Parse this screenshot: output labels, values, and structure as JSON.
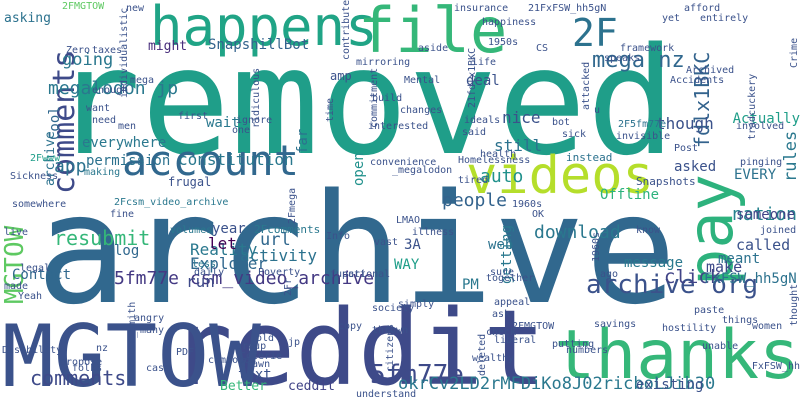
{
  "words": [
    {
      "text": "removed",
      "color": "#1f9e89"
    },
    {
      "text": "archive",
      "color": "#31688e"
    },
    {
      "text": "reddit",
      "color": "#3e4a89"
    },
    {
      "text": "MGTOW",
      "color": "#3b528b"
    },
    {
      "text": "thanks",
      "color": "#35b779"
    },
    {
      "text": "happens",
      "color": "#20a486"
    },
    {
      "text": "file",
      "color": "#35b779"
    },
    {
      "text": "videos",
      "color": "#b5de2b"
    },
    {
      "text": "pay",
      "color": "#2db27d"
    },
    {
      "text": "account",
      "color": "#31688e"
    },
    {
      "text": "comments",
      "color": "#3e4a89"
    },
    {
      "text": "5fm77e",
      "color": "#3e4a89"
    },
    {
      "text": "archive org",
      "color": "#3b528b"
    },
    {
      "text": "2F",
      "color": "#2c728e"
    },
    {
      "text": "comments",
      "color": "#3e4a89"
    },
    {
      "text": "MGTOW",
      "color": "#5ec962"
    },
    {
      "text": "mega nz",
      "color": "#31688e"
    },
    {
      "text": "resubmit",
      "color": "#35b779"
    },
    {
      "text": "going",
      "color": "#2a788e"
    },
    {
      "text": "megalodon jp",
      "color": "#2a788e"
    },
    {
      "text": "fdlx1BKC",
      "color": "#33638d"
    },
    {
      "text": "okrCv2LD2rMFDiKo8J02ricboLJib30",
      "color": "#2a788e"
    },
    {
      "text": "5fm77e csm_video_archive",
      "color": "#443983"
    },
    {
      "text": "download",
      "color": "#2a788e"
    },
    {
      "text": "people",
      "color": "#33638d"
    },
    {
      "text": "click",
      "color": "#414487"
    },
    {
      "text": "auto",
      "color": "#21918c"
    },
    {
      "text": "nation",
      "color": "#26828e"
    },
    {
      "text": "rules",
      "color": "#2a788e"
    },
    {
      "text": "though",
      "color": "#3b528b"
    },
    {
      "text": "nice",
      "color": "#3b528b"
    },
    {
      "text": "still",
      "color": "#2c728e"
    },
    {
      "text": "app",
      "color": "#2c728e"
    },
    {
      "text": "everywhere",
      "color": "#2a788e"
    },
    {
      "text": "permission",
      "color": "#2c728e"
    },
    {
      "text": "constitution",
      "color": "#2a788e"
    },
    {
      "text": "url",
      "color": "#31688e"
    },
    {
      "text": "activity",
      "color": "#2c728e"
    },
    {
      "text": "Explorer",
      "color": "#31688e"
    },
    {
      "text": "Reality",
      "color": "#2a788e"
    },
    {
      "text": "let",
      "color": "#440154"
    },
    {
      "text": "run",
      "color": "#3e4a89"
    },
    {
      "text": "make",
      "color": "#3e4a89"
    },
    {
      "text": "called",
      "color": "#3b528b"
    },
    {
      "text": "meant",
      "color": "#2c728e"
    },
    {
      "text": "FxFSW_hh5gN",
      "color": "#2c728e"
    },
    {
      "text": "asked",
      "color": "#3b528b"
    },
    {
      "text": "EVERY",
      "color": "#2c728e"
    },
    {
      "text": "Offline",
      "color": "#2db27d"
    },
    {
      "text": "someone",
      "color": "#414487"
    },
    {
      "text": "Actually",
      "color": "#1f9e89"
    },
    {
      "text": "Contact",
      "color": "#31688e"
    },
    {
      "text": "PM",
      "color": "#2a788e"
    },
    {
      "text": "web",
      "color": "#2c728e"
    },
    {
      "text": "WAY",
      "color": "#1f9e89"
    },
    {
      "text": "message",
      "color": "#2a788e"
    },
    {
      "text": "3A",
      "color": "#3b528b"
    },
    {
      "text": "text",
      "color": "#3b528b"
    },
    {
      "text": "ceddit",
      "color": "#414487"
    },
    {
      "text": "Better",
      "color": "#35b779"
    },
    {
      "text": "existing",
      "color": "#3b528b"
    },
    {
      "text": "SnapshillBot",
      "color": "#33638d"
    },
    {
      "text": "wait",
      "color": "#2a788e"
    },
    {
      "text": "far",
      "color": "#2c728e"
    },
    {
      "text": "open",
      "color": "#21918c"
    },
    {
      "text": "deal",
      "color": "#3b528b"
    },
    {
      "text": "log",
      "color": "#31688e"
    },
    {
      "text": "amp",
      "color": "#3b528b"
    },
    {
      "text": "might",
      "color": "#472d7b"
    },
    {
      "text": "Cool",
      "color": "#31688e"
    },
    {
      "text": "archive",
      "color": "#2c728e"
    },
    {
      "text": "asking",
      "color": "#2c728e"
    },
    {
      "text": "year",
      "color": "#3b528b"
    },
    {
      "text": "getting",
      "color": "#2a788e"
    },
    {
      "text": "Snapshots",
      "color": "#3b528b"
    },
    {
      "text": "2F5fm77e",
      "color": "#2c728e"
    },
    {
      "text": "invisible",
      "color": "#3b528b"
    },
    {
      "text": "instead",
      "color": "#2c728e"
    },
    {
      "text": "frugal",
      "color": "#3b528b"
    },
    {
      "text": "entirely",
      "color": "#3b528b"
    },
    {
      "text": "afford",
      "color": "#3b528b"
    },
    {
      "text": "Archived",
      "color": "#3b528b"
    },
    {
      "text": "Accidents",
      "color": "#3b528b"
    },
    {
      "text": "insurance",
      "color": "#3b528b"
    },
    {
      "text": "21FxFSW_hh5gN",
      "color": "#3b528b"
    },
    {
      "text": "yet",
      "color": "#3b528b"
    },
    {
      "text": "2FMGTOW",
      "color": "#5ec962"
    },
    {
      "text": "new",
      "color": "#3b528b"
    },
    {
      "text": "taxes",
      "color": "#3b528b"
    },
    {
      "text": "Zero",
      "color": "#3b528b"
    },
    {
      "text": "2Fwww",
      "color": "#1f9e89"
    },
    {
      "text": "Sickness",
      "color": "#3b528b"
    },
    {
      "text": "making",
      "color": "#2a788e"
    },
    {
      "text": "somewhere",
      "color": "#3b528b"
    },
    {
      "text": "fine",
      "color": "#3b528b"
    },
    {
      "text": "live",
      "color": "#3b528b"
    },
    {
      "text": "legal",
      "color": "#3b528b"
    },
    {
      "text": "made",
      "color": "#3b528b"
    },
    {
      "text": "Disability",
      "color": "#3b528b"
    },
    {
      "text": "folks",
      "color": "#3b528b"
    },
    {
      "text": "propose",
      "color": "#3b528b"
    },
    {
      "text": "clive_smith",
      "color": "#3b528b"
    },
    {
      "text": "compose",
      "color": "#3b528b"
    },
    {
      "text": "2Fcomments",
      "color": "#2a788e"
    },
    {
      "text": "2Fcsm_video_archive",
      "color": "#2a788e"
    },
    {
      "text": "volumes",
      "color": "#2a788e"
    },
    {
      "text": "less",
      "color": "#2a788e"
    },
    {
      "text": "daily",
      "color": "#3b528b"
    },
    {
      "text": "Poverty",
      "color": "#3b528b"
    },
    {
      "text": "group",
      "color": "#3b528b"
    },
    {
      "text": "Coterie",
      "color": "#3b528b"
    },
    {
      "text": "drawn",
      "color": "#3b528b"
    },
    {
      "text": "old",
      "color": "#3b528b"
    },
    {
      "text": "understand",
      "color": "#3b528b"
    },
    {
      "text": "citizens",
      "color": "#3b528b"
    },
    {
      "text": "thrown",
      "color": "#3b528b"
    },
    {
      "text": "society",
      "color": "#3b528b"
    },
    {
      "text": "deleted",
      "color": "#3b528b"
    },
    {
      "text": "wealthy",
      "color": "#3b528b"
    },
    {
      "text": "liberal",
      "color": "#3b528b"
    },
    {
      "text": "check",
      "color": "#3b528b"
    },
    {
      "text": "ask",
      "color": "#3b528b"
    },
    {
      "text": "putting",
      "color": "#3b528b"
    },
    {
      "text": "numbers",
      "color": "#3b528b"
    },
    {
      "text": "savings",
      "color": "#3b528b"
    },
    {
      "text": "hostility",
      "color": "#3b528b"
    },
    {
      "text": "FxFSW_hh",
      "color": "#3b528b"
    },
    {
      "text": "thought",
      "color": "#3b528b"
    },
    {
      "text": "things",
      "color": "#3b528b"
    },
    {
      "text": "unable",
      "color": "#3b528b"
    },
    {
      "text": "women",
      "color": "#3b528b"
    },
    {
      "text": "paste",
      "color": "#3b528b"
    },
    {
      "text": "ago",
      "color": "#3b528b"
    },
    {
      "text": "joined",
      "color": "#3b528b"
    },
    {
      "text": "know",
      "color": "#3b528b"
    },
    {
      "text": "pinging",
      "color": "#3b528b"
    },
    {
      "text": "Post",
      "color": "#3b528b"
    },
    {
      "text": "tradcuckery",
      "color": "#3b528b"
    },
    {
      "text": "involved",
      "color": "#3b528b"
    },
    {
      "text": "Crime",
      "color": "#3b528b"
    },
    {
      "text": "framework",
      "color": "#3b528b"
    },
    {
      "text": "speaks",
      "color": "#3b528b"
    },
    {
      "text": "attacked",
      "color": "#3b528b"
    },
    {
      "text": "bot",
      "color": "#3b528b"
    },
    {
      "text": "sick",
      "color": "#3b528b"
    },
    {
      "text": "health",
      "color": "#3b528b"
    },
    {
      "text": "said",
      "color": "#3b528b"
    },
    {
      "text": "ideals",
      "color": "#3b528b"
    },
    {
      "text": "Homelessness",
      "color": "#3b528b"
    },
    {
      "text": "_megalodon",
      "color": "#3b528b"
    },
    {
      "text": "convenience",
      "color": "#3b528b"
    },
    {
      "text": "tired",
      "color": "#3b528b"
    },
    {
      "text": "OK",
      "color": "#3b528b"
    },
    {
      "text": "1960s",
      "color": "#3b528b"
    },
    {
      "text": "appeal",
      "color": "#3b528b"
    },
    {
      "text": "sure",
      "color": "#3b528b"
    },
    {
      "text": "together",
      "color": "#3b528b"
    },
    {
      "text": "simply",
      "color": "#3b528b"
    },
    {
      "text": "copy",
      "color": "#3b528b"
    },
    {
      "text": "part",
      "color": "#3b528b"
    },
    {
      "text": "vast",
      "color": "#3b528b"
    },
    {
      "text": "Info",
      "color": "#3b528b"
    },
    {
      "text": "LMAO",
      "color": "#3b528b"
    },
    {
      "text": "illness",
      "color": "#3b528b"
    },
    {
      "text": "2Fr",
      "color": "#3b528b"
    },
    {
      "text": "jp",
      "color": "#3b528b"
    },
    {
      "text": "functional",
      "color": "#3b528b"
    },
    {
      "text": "2Fmega",
      "color": "#3b528b"
    },
    {
      "text": "ridiculous",
      "color": "#3b528b"
    },
    {
      "text": "one",
      "color": "#3b528b"
    },
    {
      "text": "ignore",
      "color": "#3b528b"
    },
    {
      "text": "first",
      "color": "#3b528b"
    },
    {
      "text": "enough",
      "color": "#3b528b"
    },
    {
      "text": "want",
      "color": "#3b528b"
    },
    {
      "text": "need",
      "color": "#3b528b"
    },
    {
      "text": "men",
      "color": "#3b528b"
    },
    {
      "text": "mega",
      "color": "#3b528b"
    },
    {
      "text": "individualistic",
      "color": "#3b528b"
    },
    {
      "text": "time",
      "color": "#3b528b"
    },
    {
      "text": "mirroring",
      "color": "#3b528b"
    },
    {
      "text": "contribute",
      "color": "#3b528b"
    },
    {
      "text": "aside",
      "color": "#3b528b"
    },
    {
      "text": "1950s",
      "color": "#3b528b"
    },
    {
      "text": "CS",
      "color": "#3b528b"
    },
    {
      "text": "happiness",
      "color": "#3b528b"
    },
    {
      "text": "life",
      "color": "#3b528b"
    },
    {
      "text": "Mental",
      "color": "#3b528b"
    },
    {
      "text": "build",
      "color": "#3b528b"
    },
    {
      "text": "changes",
      "color": "#3b528b"
    },
    {
      "text": "interested",
      "color": "#3b528b"
    },
    {
      "text": "commitment",
      "color": "#3b528b"
    },
    {
      "text": "21fdlx1BKC",
      "color": "#3b528b"
    },
    {
      "text": "u",
      "color": "#3b528b"
    },
    {
      "text": "nz",
      "color": "#3b528b"
    },
    {
      "text": "Yeah",
      "color": "#3b528b"
    },
    {
      "text": "1960s",
      "color": "#3b528b"
    },
    {
      "text": "PDF",
      "color": "#3b528b"
    },
    {
      "text": "case",
      "color": "#3b528b"
    },
    {
      "text": "angry",
      "color": "#3b528b"
    },
    {
      "text": "many",
      "color": "#3b528b"
    },
    {
      "text": "2FMGTOW",
      "color": "#3b528b"
    }
  ]
}
